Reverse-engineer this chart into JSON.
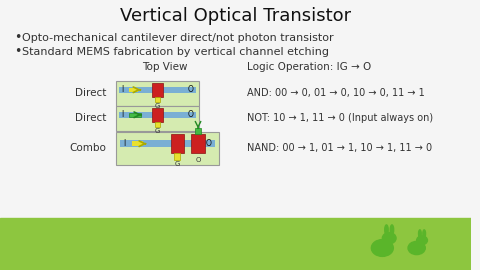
{
  "title": "Vertical Optical Transistor",
  "bullet1": "Opto-mechanical cantilever direct/not photon transistor",
  "bullet2": "Standard MEMS fabrication by vertical channel etching",
  "top_view_label": "Top View",
  "logic_label": "Logic Operation: IG → O",
  "rows": [
    {
      "row_label": "Direct",
      "logic_text": "AND: 00 → 0, 01 → 0, 10 → 0, 11 → 1"
    },
    {
      "row_label": "Direct",
      "logic_text": "NOT: 10 → 1, 11 → 0 (Input always on)"
    },
    {
      "row_label": "Combo",
      "logic_text": "NAND: 00 → 1, 01 → 1, 10 → 1, 11 → 0"
    }
  ],
  "bg_color": "#f5f5f5",
  "grass_color": "#8dc63f",
  "box_bg": "#d5ebb0",
  "channel_color": "#7aafd4",
  "red_color": "#cc2020",
  "yellow_color": "#e8e030",
  "green_color": "#44bb44",
  "border_color": "#999999",
  "title_fontsize": 13,
  "body_fontsize": 8,
  "label_fontsize": 7.5
}
